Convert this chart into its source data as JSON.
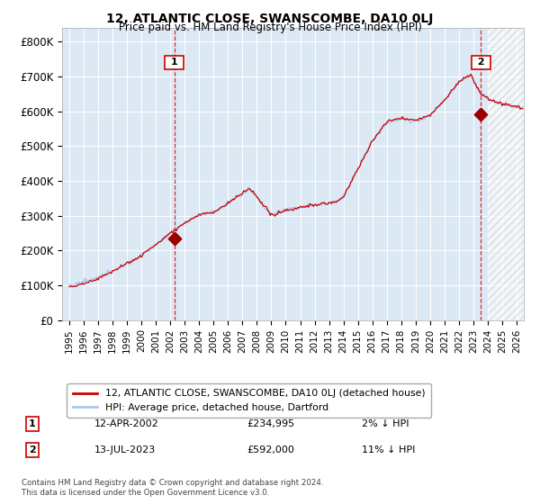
{
  "title": "12, ATLANTIC CLOSE, SWANSCOMBE, DA10 0LJ",
  "subtitle": "Price paid vs. HM Land Registry's House Price Index (HPI)",
  "legend_line1": "12, ATLANTIC CLOSE, SWANSCOMBE, DA10 0LJ (detached house)",
  "legend_line2": "HPI: Average price, detached house, Dartford",
  "annotation1_label": "1",
  "annotation1_date": "12-APR-2002",
  "annotation1_price": "£234,995",
  "annotation1_hpi": "2% ↓ HPI",
  "annotation1_year": 2002.28,
  "annotation1_value": 234995,
  "annotation2_label": "2",
  "annotation2_date": "13-JUL-2023",
  "annotation2_price": "£592,000",
  "annotation2_hpi": "11% ↓ HPI",
  "annotation2_year": 2023.53,
  "annotation2_value": 592000,
  "hpi_color": "#aac8e8",
  "sale_color": "#cc0000",
  "annotation_color": "#cc0000",
  "sale_dot_color": "#990000",
  "ylim_min": 0,
  "ylim_max": 840000,
  "yticks": [
    0,
    100000,
    200000,
    300000,
    400000,
    500000,
    600000,
    700000,
    800000
  ],
  "ytick_labels": [
    "£0",
    "£100K",
    "£200K",
    "£300K",
    "£400K",
    "£500K",
    "£600K",
    "£700K",
    "£800K"
  ],
  "xlim_min": 1994.5,
  "xlim_max": 2026.5,
  "xtick_years": [
    1995,
    1996,
    1997,
    1998,
    1999,
    2000,
    2001,
    2002,
    2003,
    2004,
    2005,
    2006,
    2007,
    2008,
    2009,
    2010,
    2011,
    2012,
    2013,
    2014,
    2015,
    2016,
    2017,
    2018,
    2019,
    2020,
    2021,
    2022,
    2023,
    2024,
    2025,
    2026
  ],
  "footer": "Contains HM Land Registry data © Crown copyright and database right 2024.\nThis data is licensed under the Open Government Licence v3.0.",
  "background_color": "#ffffff",
  "plot_bg_color": "#dce9f5",
  "grid_color": "#ffffff",
  "hatch_start_year": 2024.0
}
